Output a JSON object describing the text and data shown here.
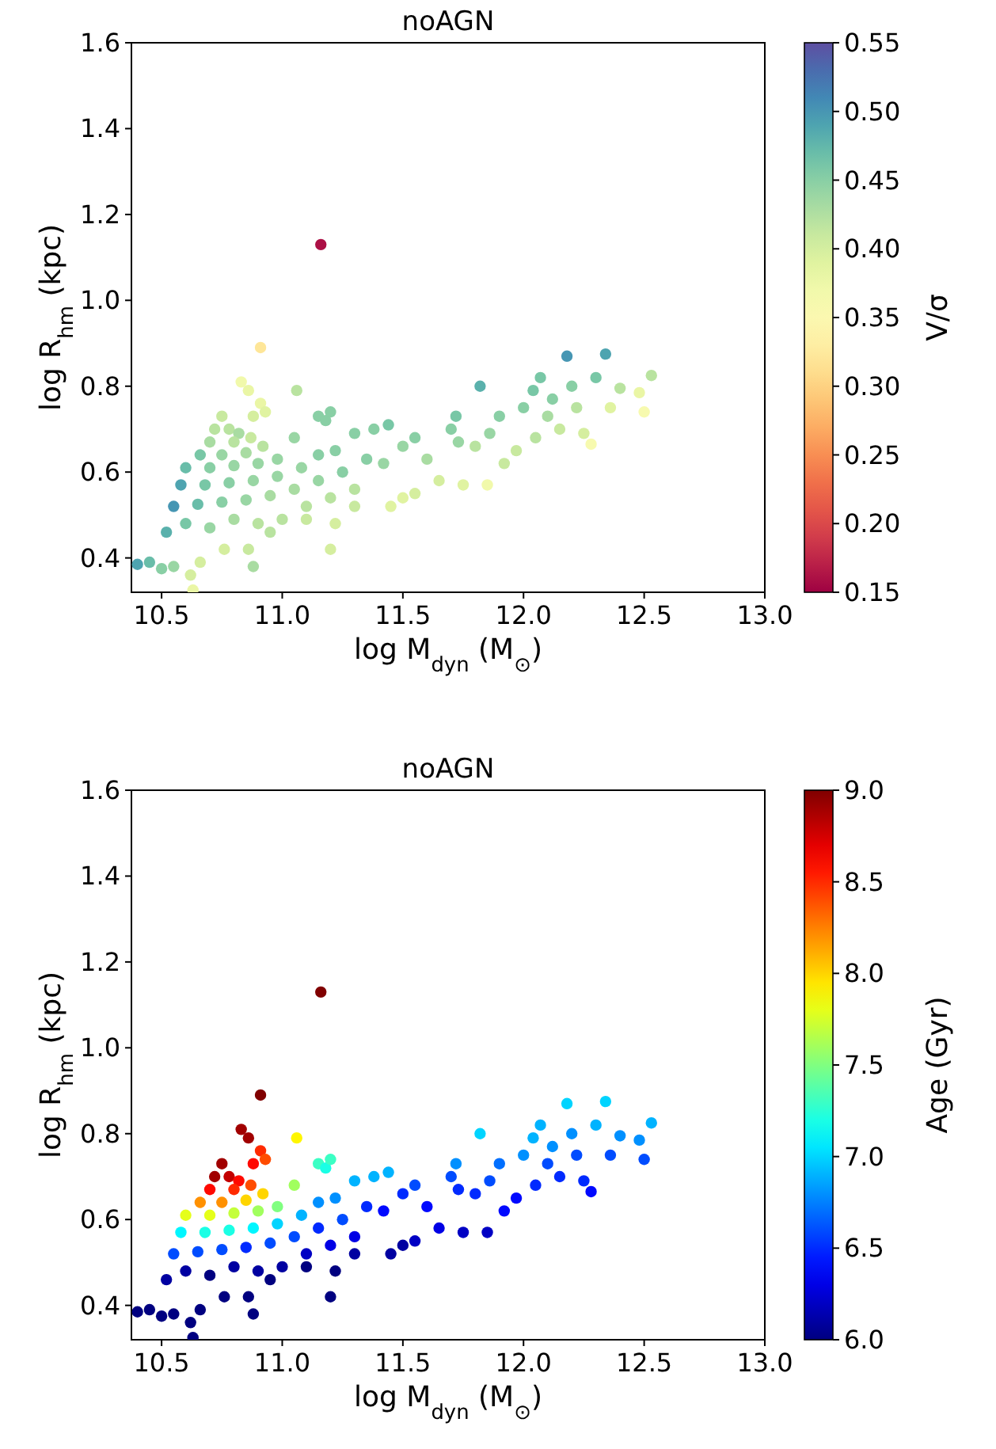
{
  "chart_data": [
    {
      "type": "scatter",
      "title": "noAGN",
      "xlabel": "log M$_{dyn}$ (M$_{⊙}$)",
      "ylabel": "log R$_{hm}$ (kpc)",
      "clabel": "V/σ",
      "xlim": [
        10.375,
        13.0
      ],
      "ylim": [
        0.32,
        1.6
      ],
      "xticks": [
        10.5,
        {
          "value": 11,
          "label": "11.0"
        },
        11.5,
        {
          "value": 12,
          "label": "12.0"
        },
        12.5,
        {
          "value": 13,
          "label": "13.0"
        }
      ],
      "yticks": [
        0.4,
        0.6,
        0.8,
        {
          "value": 1,
          "label": "1.0"
        },
        1.2,
        1.4,
        1.6
      ],
      "clim": [
        0.15,
        0.55
      ],
      "cticks": [
        0.15,
        {
          "value": 0.2,
          "label": "0.20"
        },
        0.25,
        {
          "value": 0.3,
          "label": "0.30"
        },
        0.35,
        {
          "value": 0.4,
          "label": "0.40"
        },
        0.45,
        {
          "value": 0.5,
          "label": "0.50"
        },
        0.55
      ],
      "x": [
        11.16,
        10.91,
        10.83,
        10.86,
        10.91,
        10.93,
        11.06,
        11.15,
        11.18,
        11.2,
        10.88,
        10.75,
        10.72,
        10.78,
        10.82,
        10.7,
        10.8,
        10.87,
        10.66,
        10.75,
        10.85,
        10.92,
        10.6,
        10.7,
        10.8,
        10.9,
        10.98,
        11.05,
        10.58,
        10.68,
        10.78,
        10.88,
        10.98,
        11.08,
        11.15,
        11.22,
        10.55,
        10.65,
        10.75,
        10.85,
        10.95,
        11.05,
        11.15,
        11.25,
        11.3,
        11.38,
        11.44,
        11.35,
        11.42,
        10.52,
        10.6,
        10.7,
        10.8,
        10.9,
        11.0,
        11.1,
        11.2,
        11.3,
        10.4,
        10.45,
        10.5,
        10.55,
        10.62,
        10.63,
        10.66,
        10.76,
        10.86,
        10.88,
        10.95,
        11.1,
        11.2,
        11.22,
        11.3,
        11.45,
        11.5,
        11.55,
        11.5,
        11.55,
        11.6,
        11.65,
        11.7,
        11.73,
        11.75,
        11.72,
        11.82,
        11.85,
        11.8,
        11.86,
        11.9,
        11.92,
        11.97,
        12.0,
        12.04,
        12.07,
        12.05,
        12.1,
        12.12,
        12.15,
        12.18,
        12.2,
        12.22,
        12.25,
        12.28,
        12.3,
        12.34,
        12.36,
        12.4,
        12.48,
        12.5,
        12.53
      ],
      "values": [
        1.13,
        0.89,
        0.81,
        0.79,
        0.76,
        0.74,
        0.79,
        0.73,
        0.72,
        0.74,
        0.73,
        0.73,
        0.7,
        0.7,
        0.69,
        0.67,
        0.67,
        0.68,
        0.64,
        0.64,
        0.645,
        0.66,
        0.61,
        0.61,
        0.615,
        0.62,
        0.63,
        0.68,
        0.57,
        0.57,
        0.575,
        0.58,
        0.59,
        0.61,
        0.64,
        0.65,
        0.52,
        0.525,
        0.53,
        0.535,
        0.545,
        0.56,
        0.58,
        0.6,
        0.69,
        0.7,
        0.71,
        0.63,
        0.62,
        0.46,
        0.48,
        0.47,
        0.49,
        0.48,
        0.49,
        0.52,
        0.54,
        0.56,
        0.385,
        0.39,
        0.375,
        0.38,
        0.36,
        0.325,
        0.39,
        0.42,
        0.42,
        0.38,
        0.46,
        0.49,
        0.42,
        0.48,
        0.52,
        0.52,
        0.54,
        0.55,
        0.66,
        0.68,
        0.63,
        0.58,
        0.7,
        0.67,
        0.57,
        0.73,
        0.8,
        0.57,
        0.66,
        0.69,
        0.73,
        0.62,
        0.65,
        0.75,
        0.79,
        0.82,
        0.68,
        0.73,
        0.77,
        0.7,
        0.87,
        0.8,
        0.75,
        0.69,
        0.665,
        0.82,
        0.875,
        0.75,
        0.795,
        0.785,
        0.74,
        0.825
      ],
      "cvalues": [
        0.16,
        0.32,
        0.37,
        0.38,
        0.38,
        0.39,
        0.42,
        0.45,
        0.45,
        0.45,
        0.4,
        0.41,
        0.42,
        0.42,
        0.43,
        0.43,
        0.42,
        0.41,
        0.46,
        0.44,
        0.43,
        0.42,
        0.47,
        0.45,
        0.44,
        0.44,
        0.44,
        0.44,
        0.49,
        0.46,
        0.45,
        0.44,
        0.44,
        0.44,
        0.45,
        0.45,
        0.5,
        0.47,
        0.45,
        0.44,
        0.43,
        0.43,
        0.44,
        0.45,
        0.45,
        0.45,
        0.46,
        0.45,
        0.44,
        0.48,
        0.46,
        0.44,
        0.43,
        0.42,
        0.42,
        0.42,
        0.42,
        0.42,
        0.49,
        0.47,
        0.45,
        0.44,
        0.4,
        0.38,
        0.4,
        0.4,
        0.41,
        0.43,
        0.42,
        0.41,
        0.4,
        0.4,
        0.41,
        0.39,
        0.39,
        0.4,
        0.44,
        0.45,
        0.43,
        0.4,
        0.45,
        0.44,
        0.39,
        0.46,
        0.48,
        0.37,
        0.42,
        0.44,
        0.45,
        0.41,
        0.41,
        0.45,
        0.46,
        0.46,
        0.42,
        0.43,
        0.45,
        0.41,
        0.5,
        0.45,
        0.42,
        0.4,
        0.36,
        0.46,
        0.49,
        0.39,
        0.42,
        0.38,
        0.36,
        0.42
      ]
    },
    {
      "type": "scatter",
      "title": "noAGN",
      "xlabel": "log M$_{dyn}$ (M$_{⊙}$)",
      "ylabel": "log R$_{hm}$ (kpc)",
      "clabel": "Age (Gyr)",
      "xlim": [
        10.375,
        13.0
      ],
      "ylim": [
        0.32,
        1.6
      ],
      "xticks": [
        10.5,
        {
          "value": 11,
          "label": "11.0"
        },
        11.5,
        {
          "value": 12,
          "label": "12.0"
        },
        12.5,
        {
          "value": 13,
          "label": "13.0"
        }
      ],
      "yticks": [
        0.4,
        0.6,
        0.8,
        {
          "value": 1,
          "label": "1.0"
        },
        1.2,
        1.4,
        1.6
      ],
      "clim": [
        6,
        9
      ],
      "cticks": [
        {
          "value": 6,
          "label": "6.0"
        },
        6.5,
        {
          "value": 7,
          "label": "7.0"
        },
        7.5,
        {
          "value": 8,
          "label": "8.0"
        },
        8.5,
        {
          "value": 9,
          "label": "9.0"
        }
      ],
      "x": [
        11.16,
        10.91,
        10.83,
        10.86,
        10.91,
        10.93,
        11.06,
        11.15,
        11.18,
        11.2,
        10.88,
        10.75,
        10.72,
        10.78,
        10.82,
        10.7,
        10.8,
        10.87,
        10.66,
        10.75,
        10.85,
        10.92,
        10.6,
        10.7,
        10.8,
        10.9,
        10.98,
        11.05,
        10.58,
        10.68,
        10.78,
        10.88,
        10.98,
        11.08,
        11.15,
        11.22,
        10.55,
        10.65,
        10.75,
        10.85,
        10.95,
        11.05,
        11.15,
        11.25,
        11.3,
        11.38,
        11.44,
        11.35,
        11.42,
        10.52,
        10.6,
        10.7,
        10.8,
        10.9,
        11.0,
        11.1,
        11.2,
        11.3,
        10.4,
        10.45,
        10.5,
        10.55,
        10.62,
        10.63,
        10.66,
        10.76,
        10.86,
        10.88,
        10.95,
        11.1,
        11.2,
        11.22,
        11.3,
        11.45,
        11.5,
        11.55,
        11.5,
        11.55,
        11.6,
        11.65,
        11.7,
        11.73,
        11.75,
        11.72,
        11.82,
        11.85,
        11.8,
        11.86,
        11.9,
        11.92,
        11.97,
        12.0,
        12.04,
        12.07,
        12.05,
        12.1,
        12.12,
        12.15,
        12.18,
        12.2,
        12.22,
        12.25,
        12.28,
        12.3,
        12.34,
        12.36,
        12.4,
        12.48,
        12.5,
        12.53
      ],
      "values": [
        1.13,
        0.89,
        0.81,
        0.79,
        0.76,
        0.74,
        0.79,
        0.73,
        0.72,
        0.74,
        0.73,
        0.73,
        0.7,
        0.7,
        0.69,
        0.67,
        0.67,
        0.68,
        0.64,
        0.64,
        0.645,
        0.66,
        0.61,
        0.61,
        0.615,
        0.62,
        0.63,
        0.68,
        0.57,
        0.57,
        0.575,
        0.58,
        0.59,
        0.61,
        0.64,
        0.65,
        0.52,
        0.525,
        0.53,
        0.535,
        0.545,
        0.56,
        0.58,
        0.6,
        0.69,
        0.7,
        0.71,
        0.63,
        0.62,
        0.46,
        0.48,
        0.47,
        0.49,
        0.48,
        0.49,
        0.52,
        0.54,
        0.56,
        0.385,
        0.39,
        0.375,
        0.38,
        0.36,
        0.325,
        0.39,
        0.42,
        0.42,
        0.38,
        0.46,
        0.49,
        0.42,
        0.48,
        0.52,
        0.52,
        0.54,
        0.55,
        0.66,
        0.68,
        0.63,
        0.58,
        0.7,
        0.67,
        0.57,
        0.73,
        0.8,
        0.57,
        0.66,
        0.69,
        0.73,
        0.62,
        0.65,
        0.75,
        0.79,
        0.82,
        0.68,
        0.73,
        0.77,
        0.7,
        0.87,
        0.8,
        0.75,
        0.69,
        0.665,
        0.82,
        0.875,
        0.75,
        0.795,
        0.785,
        0.74,
        0.825
      ],
      "cvalues": [
        9.0,
        9.0,
        8.9,
        8.9,
        8.5,
        8.4,
        7.9,
        7.3,
        7.2,
        7.3,
        8.6,
        8.9,
        8.9,
        8.8,
        8.6,
        8.6,
        8.5,
        8.4,
        8.2,
        8.2,
        8.0,
        8.0,
        7.8,
        7.8,
        7.7,
        7.6,
        7.5,
        7.6,
        7.1,
        7.2,
        7.2,
        7.1,
        7.0,
        6.9,
        6.8,
        6.8,
        6.6,
        6.6,
        6.6,
        6.5,
        6.6,
        6.6,
        6.5,
        6.6,
        6.9,
        6.9,
        6.9,
        6.5,
        6.4,
        6.1,
        6.1,
        6.0,
        6.1,
        6.1,
        6.1,
        6.2,
        6.3,
        6.3,
        6.0,
        6.0,
        6.0,
        6.0,
        6.0,
        6.0,
        6.0,
        6.0,
        6.0,
        6.0,
        6.0,
        6.0,
        6.0,
        6.0,
        6.1,
        6.1,
        6.1,
        6.2,
        6.5,
        6.6,
        6.4,
        6.3,
        6.6,
        6.5,
        6.2,
        6.8,
        7.0,
        6.2,
        6.5,
        6.6,
        6.7,
        6.4,
        6.4,
        6.8,
        6.9,
        6.9,
        6.5,
        6.6,
        6.8,
        6.5,
        7.0,
        6.8,
        6.6,
        6.5,
        6.4,
        6.9,
        7.0,
        6.6,
        6.8,
        6.8,
        6.6,
        6.9
      ]
    }
  ]
}
